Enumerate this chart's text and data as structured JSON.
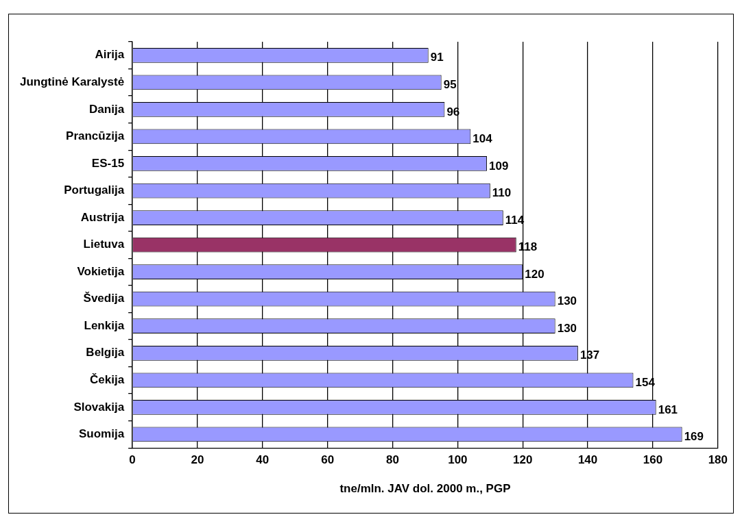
{
  "chart_data": {
    "type": "bar",
    "orientation": "horizontal",
    "xlabel": "tne/mln. JAV dol. 2000 m., PGP",
    "categories": [
      "Airija",
      "Jungtinė Karalystė",
      "Danija",
      "Prancūzija",
      "ES-15",
      "Portugalija",
      "Austrija",
      "Lietuva",
      "Vokietija",
      "Švedija",
      "Lenkija",
      "Belgija",
      "Čekija",
      "Slovakija",
      "Suomija"
    ],
    "values": [
      91,
      95,
      96,
      104,
      109,
      110,
      114,
      118,
      120,
      130,
      130,
      137,
      154,
      161,
      169
    ],
    "colors": [
      "#9999ff",
      "#9999ff",
      "#9999ff",
      "#9999ff",
      "#9999ff",
      "#9999ff",
      "#9999ff",
      "#993366",
      "#9999ff",
      "#9999ff",
      "#9999ff",
      "#9999ff",
      "#9999ff",
      "#9999ff",
      "#9999ff"
    ],
    "xlim": [
      0,
      180
    ],
    "xticks": [
      0,
      20,
      40,
      60,
      80,
      100,
      120,
      140,
      160,
      180
    ],
    "grid": "x",
    "data_labels": true,
    "legend": false
  }
}
